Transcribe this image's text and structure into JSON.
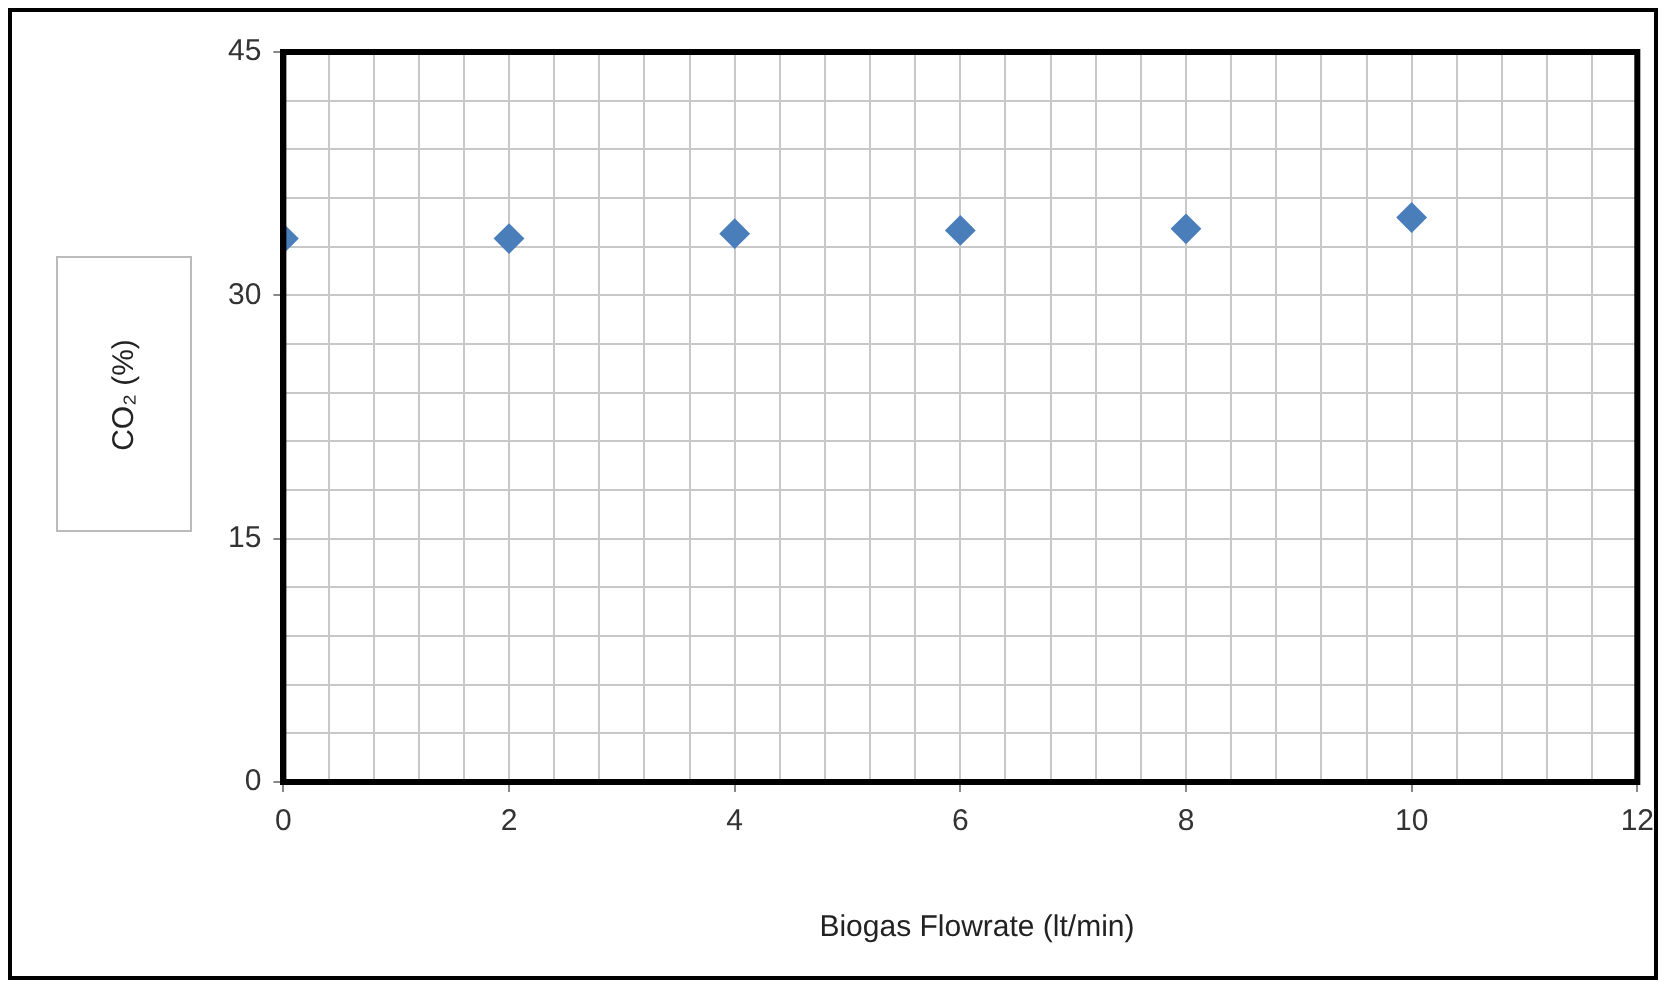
{
  "chart_data": {
    "type": "scatter",
    "xlabel": "Biogas Flowrate (lt/min)",
    "ylabel": "CO₂ (%)",
    "x": [
      0,
      2,
      4,
      6,
      8,
      10
    ],
    "series": [
      {
        "color": "#4a7ebb",
        "values": [
          33.5,
          33.5,
          33.8,
          34.0,
          34.1,
          34.8
        ]
      }
    ],
    "marker": "diamond",
    "grid": true,
    "legend": false,
    "xlim": [
      0,
      12
    ],
    "ylim": [
      0,
      45
    ],
    "xticks": [
      0,
      {
        "value": 0.4,
        "label": null
      },
      {
        "value": 0.8,
        "label": null
      },
      {
        "value": 1.2,
        "label": null
      },
      {
        "value": 1.6,
        "label": null
      },
      2,
      {
        "value": 2.4,
        "label": null
      },
      {
        "value": 2.8,
        "label": null
      },
      {
        "value": 3.2,
        "label": null
      },
      {
        "value": 3.6,
        "label": null
      },
      4,
      {
        "value": 4.4,
        "label": null
      },
      {
        "value": 4.8,
        "label": null
      },
      {
        "value": 5.2,
        "label": null
      },
      {
        "value": 5.6,
        "label": null
      },
      6,
      {
        "value": 6.4,
        "label": null
      },
      {
        "value": 6.8,
        "label": null
      },
      {
        "value": 7.2,
        "label": null
      },
      {
        "value": 7.6,
        "label": null
      },
      8,
      {
        "value": 8.4,
        "label": null
      },
      {
        "value": 8.8,
        "label": null
      },
      {
        "value": 9.2,
        "label": null
      },
      {
        "value": 9.6,
        "label": null
      },
      10,
      {
        "value": 10.4,
        "label": null
      },
      {
        "value": 10.8,
        "label": null
      },
      {
        "value": 11.2,
        "label": null
      },
      {
        "value": 11.6,
        "label": null
      },
      12
    ],
    "yticks": [
      0,
      {
        "value": 3,
        "label": null
      },
      {
        "value": 6,
        "label": null
      },
      {
        "value": 9,
        "label": null
      },
      {
        "value": 12,
        "label": null
      },
      15,
      {
        "value": 18,
        "label": null
      },
      {
        "value": 21,
        "label": null
      },
      {
        "value": 24,
        "label": null
      },
      {
        "value": 27,
        "label": null
      },
      30,
      {
        "value": 33,
        "label": null
      },
      {
        "value": 36,
        "label": null
      },
      {
        "value": 39,
        "label": null
      },
      {
        "value": 42,
        "label": null
      },
      45
    ]
  }
}
